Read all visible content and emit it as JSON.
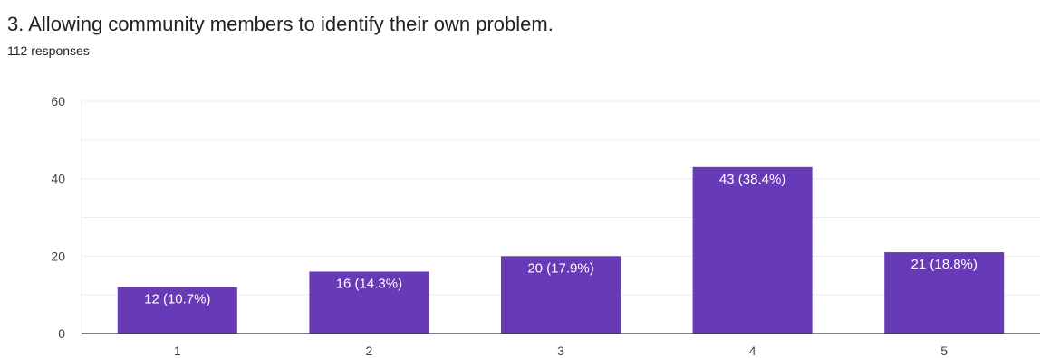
{
  "chart_data": {
    "type": "bar",
    "title": "3. Allowing community members to identify their own problem.",
    "subtitle": "112 responses",
    "categories": [
      "1",
      "2",
      "3",
      "4",
      "5"
    ],
    "values": [
      12,
      16,
      20,
      43,
      21
    ],
    "data_labels": [
      "12 (10.7%)",
      "16 (14.3%)",
      "20 (17.9%)",
      "43 (38.4%)",
      "21 (18.8%)"
    ],
    "ylim": [
      0,
      60
    ],
    "yticks": [
      0,
      20,
      40,
      60
    ],
    "grid": true,
    "bar_color": "#673ab7",
    "xlabel": "",
    "ylabel": ""
  }
}
